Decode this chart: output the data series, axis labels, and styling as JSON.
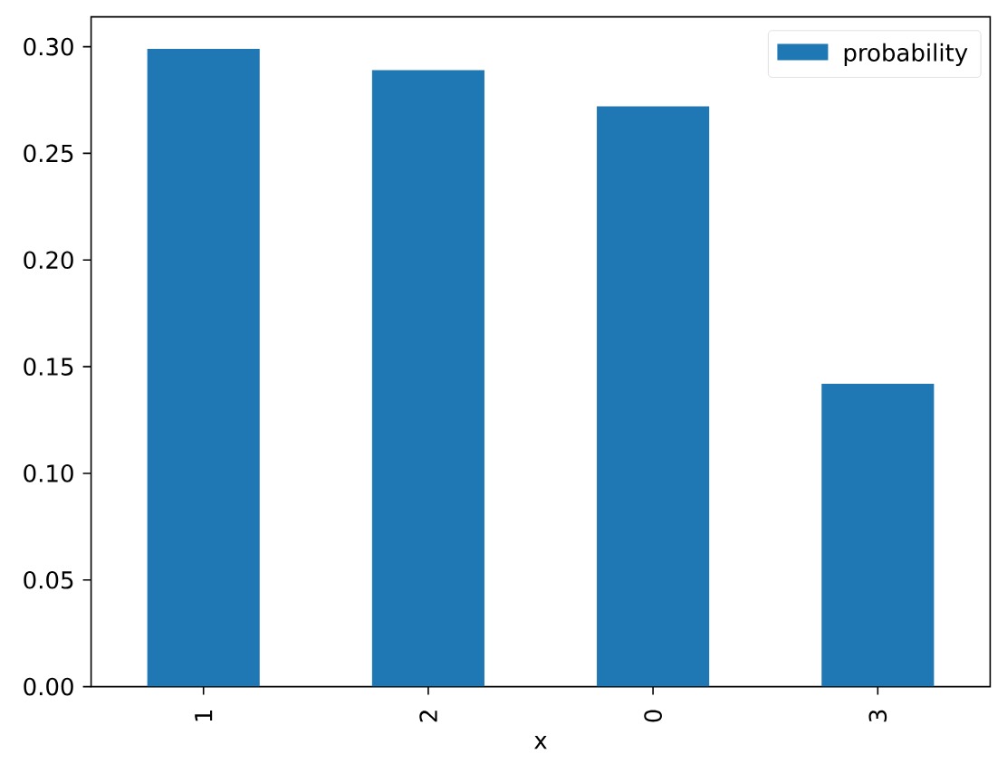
{
  "chart_data": {
    "type": "bar",
    "xlabel": "x",
    "categories": [
      "1",
      "2",
      "0",
      "3"
    ],
    "series": [
      {
        "name": "probability",
        "color": "#1f77b4",
        "values": [
          0.299,
          0.289,
          0.272,
          0.142
        ]
      }
    ],
    "ylim": [
      0,
      0.314
    ],
    "yticks": [
      {
        "value": 0,
        "label": "0.00"
      },
      {
        "value": 0.05,
        "label": "0.05"
      },
      {
        "value": 0.1,
        "label": "0.10"
      },
      {
        "value": 0.15,
        "label": "0.15"
      },
      {
        "value": 0.2,
        "label": "0.20"
      },
      {
        "value": 0.25,
        "label": "0.25"
      },
      {
        "value": 0.3,
        "label": "0.30"
      }
    ],
    "legend": "top right"
  }
}
